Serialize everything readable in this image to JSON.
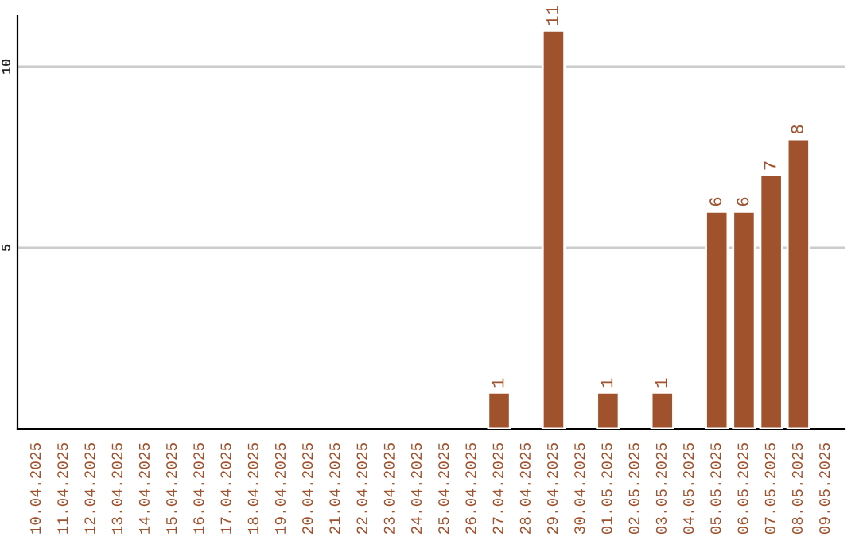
{
  "chart_data": {
    "type": "bar",
    "categories": [
      "10.04.2025",
      "11.04.2025",
      "12.04.2025",
      "13.04.2025",
      "14.04.2025",
      "15.04.2025",
      "16.04.2025",
      "17.04.2025",
      "18.04.2025",
      "19.04.2025",
      "20.04.2025",
      "21.04.2025",
      "22.04.2025",
      "23.04.2025",
      "24.04.2025",
      "25.04.2025",
      "26.04.2025",
      "27.04.2025",
      "28.04.2025",
      "29.04.2025",
      "30.04.2025",
      "01.05.2025",
      "02.05.2025",
      "03.05.2025",
      "04.05.2025",
      "05.05.2025",
      "06.05.2025",
      "07.05.2025",
      "08.05.2025",
      "09.05.2025"
    ],
    "values": [
      null,
      null,
      null,
      null,
      null,
      null,
      null,
      null,
      null,
      null,
      null,
      null,
      null,
      null,
      null,
      null,
      null,
      1,
      null,
      11,
      null,
      1,
      null,
      1,
      null,
      6,
      6,
      7,
      8,
      null
    ],
    "value_labels": [
      null,
      null,
      null,
      null,
      null,
      null,
      null,
      null,
      null,
      null,
      null,
      null,
      null,
      null,
      null,
      null,
      null,
      "1",
      null,
      "11",
      null,
      "1",
      null,
      "1",
      null,
      "6",
      "6",
      "7",
      "8",
      null
    ],
    "color": "#a0522d",
    "ylim": [
      0,
      11.4
    ],
    "yticks": [
      5,
      10
    ],
    "grid": "y",
    "legend": false
  }
}
